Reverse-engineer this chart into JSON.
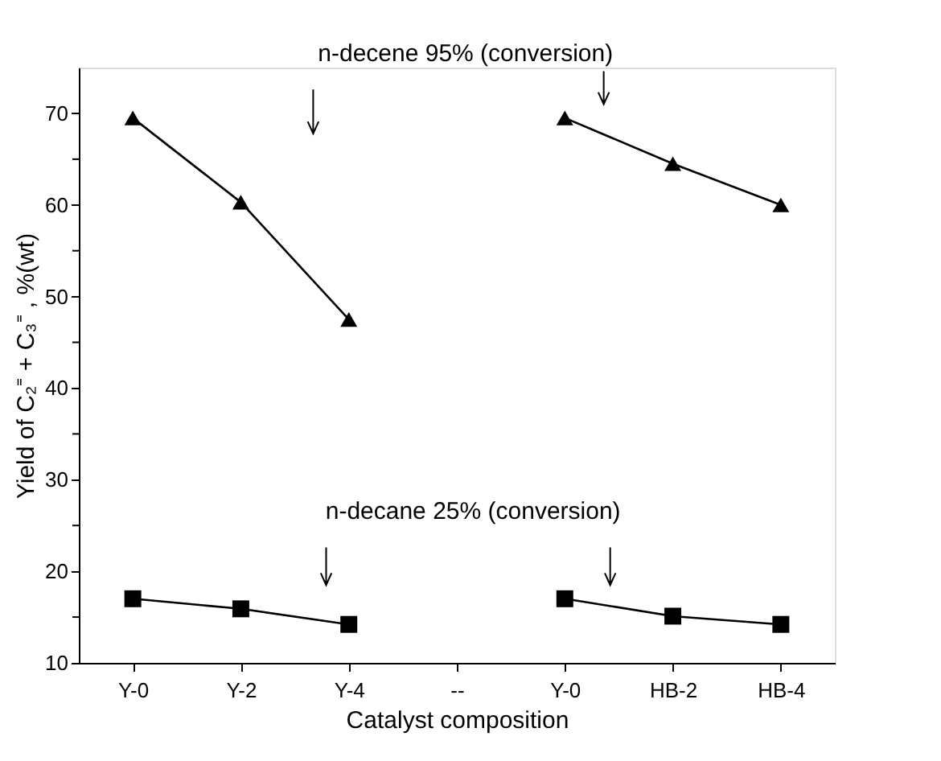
{
  "chart_data": {
    "type": "line",
    "xlabel": "Catalyst composition",
    "ylabel": "Yield of C₂⁼ + C₃⁼ , %(wt)",
    "categories": [
      "Y-0",
      "Y-2",
      "Y-4",
      "--",
      "Y-0",
      "HB-2",
      "HB-4"
    ],
    "series": [
      {
        "color": "#000000",
        "marker": "triangle",
        "values": [
          69.5,
          60.3,
          47.5,
          null,
          69.5,
          64.5,
          60.0
        ]
      },
      {
        "color": "#000000",
        "marker": "square",
        "values": [
          17.0,
          15.9,
          14.2,
          null,
          17.0,
          15.1,
          14.2
        ]
      }
    ],
    "annotations": [
      "n-decene  95% (conversion)",
      "n-decane  25% (conversion)"
    ],
    "ylim": [
      10,
      75
    ],
    "yticks": [
      10,
      {
        "value": 15,
        "label": null
      },
      20,
      {
        "value": 25,
        "label": null
      },
      30,
      {
        "value": 35,
        "label": null
      },
      40,
      {
        "value": 45,
        "label": null
      },
      50,
      {
        "value": 55,
        "label": null
      },
      60,
      {
        "value": 65,
        "label": null
      },
      70
    ],
    "grid": false,
    "line_style": "solid"
  }
}
